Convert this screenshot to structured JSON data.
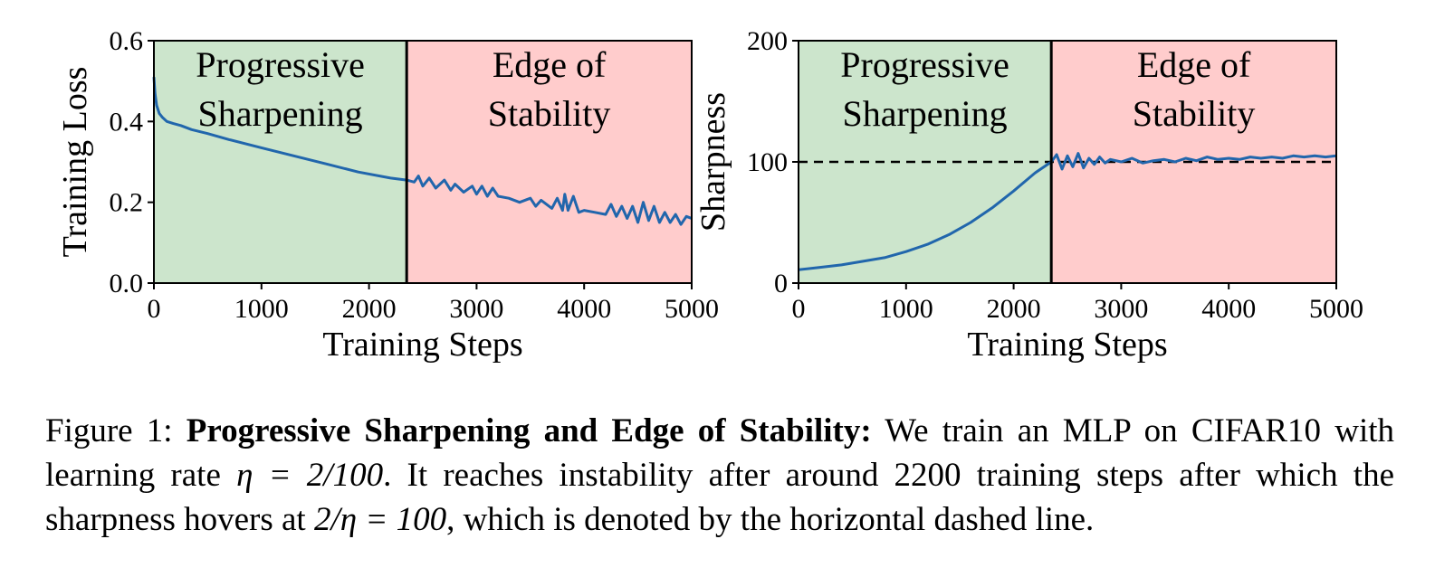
{
  "colors": {
    "line": "#2166ac",
    "region_green": "#cce5cc",
    "region_red": "#ffcccc",
    "axis": "#000000"
  },
  "chart_data": [
    {
      "type": "line",
      "xlabel": "Training Steps",
      "ylabel": "Training Loss",
      "xlim": [
        0,
        5000
      ],
      "ylim": [
        0,
        0.6
      ],
      "xticks": [
        0,
        1000,
        2000,
        3000,
        4000,
        5000
      ],
      "yticks": [
        0.0,
        0.2,
        0.4,
        0.6
      ],
      "ytick_labels": [
        "0.0",
        "0.2",
        "0.4",
        "0.6"
      ],
      "xtick_labels": [
        "0",
        "1000",
        "2000",
        "3000",
        "4000",
        "5000"
      ],
      "boundary_x": 2350,
      "regions": [
        {
          "label_lines": [
            "Progressive",
            "Sharpening"
          ],
          "x_range": [
            0,
            2350
          ],
          "color": "green"
        },
        {
          "label_lines": [
            "Edge of",
            "Stability"
          ],
          "x_range": [
            2350,
            5000
          ],
          "color": "red"
        }
      ],
      "series": [
        {
          "x": [
            0,
            10,
            25,
            50,
            80,
            120,
            180,
            250,
            350,
            500,
            700,
            1000,
            1300,
            1600,
            1900,
            2200,
            2350,
            2420,
            2460,
            2500,
            2560,
            2620,
            2700,
            2760,
            2800,
            2880,
            2960,
            3000,
            3050,
            3100,
            3150,
            3200,
            3300,
            3400,
            3500,
            3550,
            3600,
            3700,
            3750,
            3800,
            3820,
            3850,
            3900,
            3950,
            4000,
            4100,
            4200,
            4250,
            4300,
            4350,
            4400,
            4450,
            4500,
            4550,
            4600,
            4650,
            4700,
            4750,
            4800,
            4850,
            4900,
            4950,
            5000
          ],
          "y": [
            0.51,
            0.47,
            0.44,
            0.42,
            0.41,
            0.4,
            0.395,
            0.39,
            0.38,
            0.37,
            0.355,
            0.335,
            0.315,
            0.295,
            0.275,
            0.26,
            0.255,
            0.25,
            0.265,
            0.24,
            0.26,
            0.235,
            0.255,
            0.23,
            0.245,
            0.225,
            0.24,
            0.22,
            0.24,
            0.215,
            0.235,
            0.215,
            0.21,
            0.2,
            0.21,
            0.19,
            0.205,
            0.185,
            0.21,
            0.18,
            0.22,
            0.18,
            0.215,
            0.175,
            0.18,
            0.175,
            0.17,
            0.195,
            0.165,
            0.19,
            0.16,
            0.19,
            0.15,
            0.2,
            0.155,
            0.19,
            0.15,
            0.175,
            0.15,
            0.17,
            0.145,
            0.165,
            0.16
          ]
        }
      ]
    },
    {
      "type": "line",
      "xlabel": "Training Steps",
      "ylabel": "Sharpness",
      "xlim": [
        0,
        5000
      ],
      "ylim": [
        0,
        200
      ],
      "xticks": [
        0,
        1000,
        2000,
        3000,
        4000,
        5000
      ],
      "yticks": [
        0,
        100,
        200
      ],
      "ytick_labels": [
        "0",
        "100",
        "200"
      ],
      "xtick_labels": [
        "0",
        "1000",
        "2000",
        "3000",
        "4000",
        "5000"
      ],
      "boundary_x": 2350,
      "hline_y": 100,
      "regions": [
        {
          "label_lines": [
            "Progressive",
            "Sharpening"
          ],
          "x_range": [
            0,
            2350
          ],
          "color": "green"
        },
        {
          "label_lines": [
            "Edge of",
            "Stability"
          ],
          "x_range": [
            2350,
            5000
          ],
          "color": "red"
        }
      ],
      "series": [
        {
          "x": [
            0,
            200,
            400,
            600,
            800,
            1000,
            1200,
            1400,
            1600,
            1800,
            2000,
            2200,
            2350,
            2400,
            2450,
            2500,
            2550,
            2600,
            2650,
            2700,
            2750,
            2800,
            2850,
            2900,
            3000,
            3100,
            3200,
            3300,
            3400,
            3500,
            3600,
            3700,
            3800,
            3900,
            4000,
            4100,
            4200,
            4300,
            4400,
            4500,
            4600,
            4700,
            4800,
            4900,
            5000
          ],
          "y": [
            11,
            13,
            15,
            18,
            21,
            26,
            32,
            40,
            50,
            62,
            76,
            91,
            100,
            106,
            94,
            105,
            96,
            107,
            95,
            103,
            98,
            104,
            99,
            102,
            100,
            103,
            99,
            101,
            102,
            100,
            103,
            101,
            104,
            102,
            103,
            102,
            104,
            103,
            104,
            103,
            105,
            104,
            105,
            104,
            105
          ]
        }
      ]
    }
  ],
  "caption": {
    "prefix": "Figure 1: ",
    "bold": "Progressive Sharpening and Edge of Stability:",
    "text1": " We train an MLP on CIFAR10 with learning rate ",
    "math1": "η = 2/100",
    "text2": ". It reaches instability after around ",
    "num": "2200",
    "text3": " training steps after which the sharpness hovers at ",
    "math2": "2/η = 100",
    "text4": ", which is denoted by the horizontal dashed line."
  }
}
